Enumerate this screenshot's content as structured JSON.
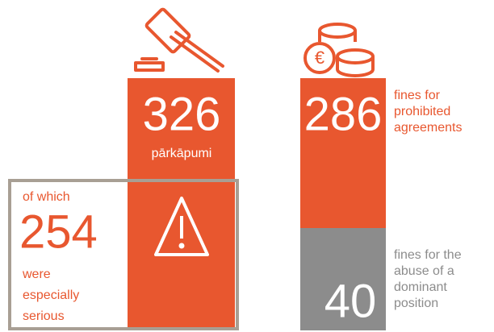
{
  "violations": {
    "total": "326",
    "total_label": "pārkāpumi",
    "serious_prefix": "of which",
    "serious": "254",
    "serious_suffix": [
      "were",
      "especially",
      "serious"
    ]
  },
  "fines": {
    "agreements": "286",
    "agreements_label": [
      "fines for",
      "prohibited",
      "agreements"
    ],
    "abuse": "40",
    "abuse_label": [
      "fines for the",
      "abuse of a",
      "dominant",
      "position"
    ]
  }
}
